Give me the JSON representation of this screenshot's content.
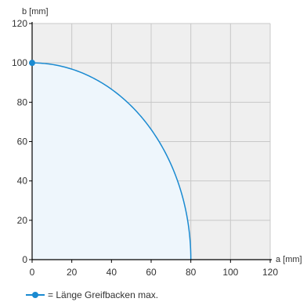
{
  "chart_data": {
    "type": "area",
    "xlabel": "a [mm]",
    "ylabel": "b [mm]",
    "xlim": [
      0,
      120
    ],
    "ylim": [
      0,
      120
    ],
    "xticks": [
      0,
      20,
      40,
      60,
      80,
      100,
      120
    ],
    "yticks": [
      0,
      20,
      40,
      60,
      80,
      100,
      120
    ],
    "grid": true,
    "legend_position": "bottom-left",
    "series": [
      {
        "name": "= Länge Greifbacken max.",
        "color": "#1a8ad1",
        "fill": "#eef6fc",
        "marker_point": {
          "x": 0,
          "y": 100
        },
        "x": [
          0,
          10,
          20,
          30,
          40,
          50,
          60,
          70,
          75,
          78,
          80
        ],
        "y": [
          100,
          99.2,
          96.8,
          92.7,
          86.6,
          78.1,
          66.1,
          48.4,
          34.8,
          22.2,
          0
        ]
      }
    ]
  },
  "colors": {
    "plot_background": "#efefef",
    "grid": "#c8c8c8",
    "axis": "#000000",
    "series": "#1a8ad1"
  }
}
